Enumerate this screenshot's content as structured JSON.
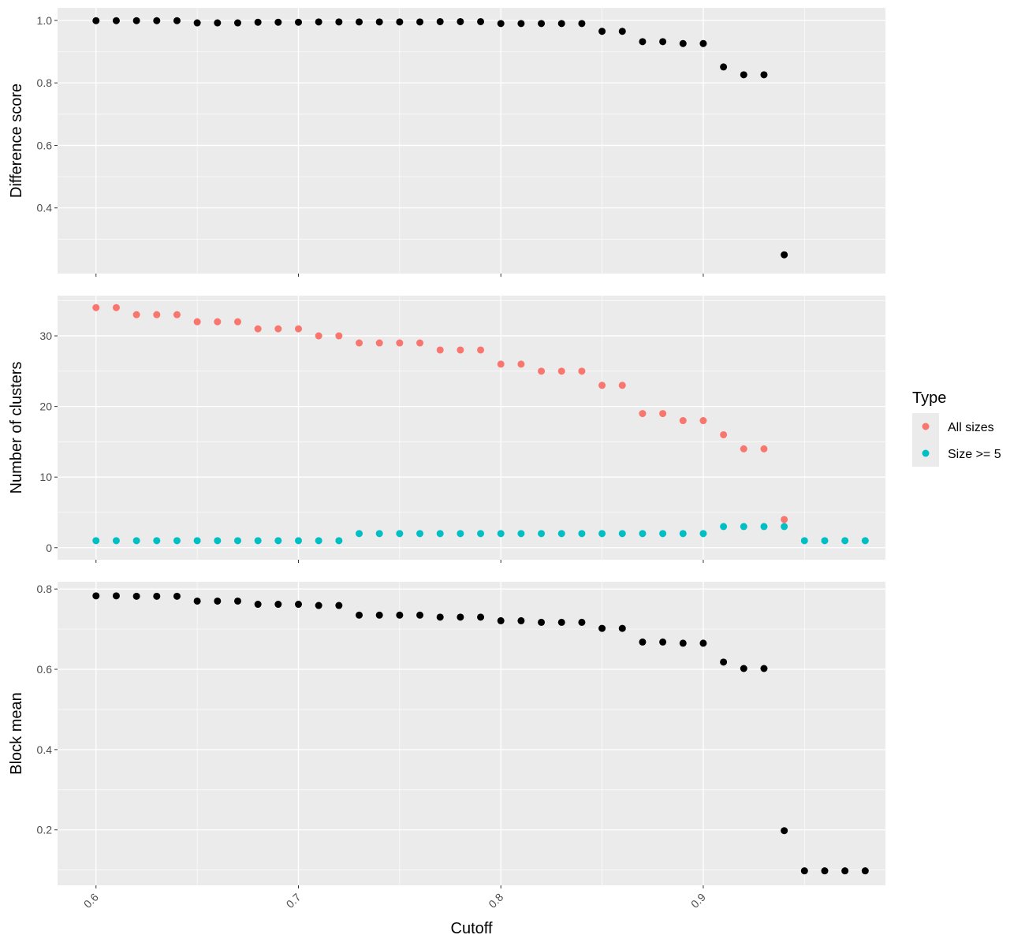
{
  "colors": {
    "panel_bg": "#ebebeb",
    "grid_major": "#ffffff",
    "point_default": "#000000",
    "all_sizes": "#f8766d",
    "size_ge_5": "#00bfc4",
    "tick": "#333333"
  },
  "chart_data": {
    "type": "scatter",
    "layout": "three vertically stacked panels sharing x axis",
    "xlabel": "Cutoff",
    "xlim": [
      0.581,
      0.99
    ],
    "x_ticks": [
      0.6,
      0.7,
      0.8,
      0.9
    ],
    "x_tick_labels": [
      "0.6",
      "0.7",
      "0.8",
      "0.9"
    ],
    "x_tick_rotation": "45 degrees",
    "grid": true,
    "panels": [
      {
        "ylabel": "Difference score",
        "ylim": [
          0.19,
          1.04
        ],
        "y_ticks": [
          0.4,
          0.6,
          0.8,
          1.0
        ],
        "y_tick_labels": [
          "0.4",
          "0.6",
          "0.8",
          "1.0"
        ],
        "series": [
          {
            "color_key": "point_default",
            "x": [
              0.6,
              0.61,
              0.62,
              0.63,
              0.64,
              0.65,
              0.66,
              0.67,
              0.68,
              0.69,
              0.7,
              0.71,
              0.72,
              0.73,
              0.74,
              0.75,
              0.76,
              0.77,
              0.78,
              0.79,
              0.8,
              0.81,
              0.82,
              0.83,
              0.84,
              0.85,
              0.86,
              0.87,
              0.88,
              0.89,
              0.9,
              0.91,
              0.92,
              0.93,
              0.94
            ],
            "y": [
              0.999,
              0.999,
              0.999,
              0.999,
              0.999,
              0.992,
              0.992,
              0.992,
              0.994,
              0.994,
              0.994,
              0.995,
              0.995,
              0.995,
              0.995,
              0.995,
              0.995,
              0.996,
              0.996,
              0.996,
              0.99,
              0.99,
              0.99,
              0.99,
              0.99,
              0.965,
              0.965,
              0.932,
              0.932,
              0.926,
              0.926,
              0.851,
              0.826,
              0.826,
              0.25
            ]
          }
        ]
      },
      {
        "ylabel": "Number of clusters",
        "ylim": [
          -1.7,
          35.7
        ],
        "y_ticks": [
          0,
          10,
          20,
          30
        ],
        "y_tick_labels": [
          "0",
          "10",
          "20",
          "30"
        ],
        "series": [
          {
            "name": "All sizes",
            "color_key": "all_sizes",
            "x": [
              0.6,
              0.61,
              0.62,
              0.63,
              0.64,
              0.65,
              0.66,
              0.67,
              0.68,
              0.69,
              0.7,
              0.71,
              0.72,
              0.73,
              0.74,
              0.75,
              0.76,
              0.77,
              0.78,
              0.79,
              0.8,
              0.81,
              0.82,
              0.83,
              0.84,
              0.85,
              0.86,
              0.87,
              0.88,
              0.89,
              0.9,
              0.91,
              0.92,
              0.93,
              0.94
            ],
            "y": [
              34,
              34,
              33,
              33,
              33,
              32,
              32,
              32,
              31,
              31,
              31,
              30,
              30,
              29,
              29,
              29,
              29,
              28,
              28,
              28,
              26,
              26,
              25,
              25,
              25,
              23,
              23,
              19,
              19,
              18,
              18,
              16,
              14,
              14,
              4
            ]
          },
          {
            "name": "Size >= 5",
            "color_key": "size_ge_5",
            "x": [
              0.6,
              0.61,
              0.62,
              0.63,
              0.64,
              0.65,
              0.66,
              0.67,
              0.68,
              0.69,
              0.7,
              0.71,
              0.72,
              0.73,
              0.74,
              0.75,
              0.76,
              0.77,
              0.78,
              0.79,
              0.8,
              0.81,
              0.82,
              0.83,
              0.84,
              0.85,
              0.86,
              0.87,
              0.88,
              0.89,
              0.9,
              0.91,
              0.92,
              0.93,
              0.94,
              0.95,
              0.96,
              0.97,
              0.98
            ],
            "y": [
              1,
              1,
              1,
              1,
              1,
              1,
              1,
              1,
              1,
              1,
              1,
              1,
              1,
              2,
              2,
              2,
              2,
              2,
              2,
              2,
              2,
              2,
              2,
              2,
              2,
              2,
              2,
              2,
              2,
              2,
              2,
              3,
              3,
              3,
              3,
              1,
              1,
              1,
              1
            ]
          }
        ]
      },
      {
        "ylabel": "Block mean",
        "ylim": [
          0.062,
          0.818
        ],
        "y_ticks": [
          0.2,
          0.4,
          0.6,
          0.8
        ],
        "y_tick_labels": [
          "0.2",
          "0.4",
          "0.6",
          "0.8"
        ],
        "series": [
          {
            "color_key": "point_default",
            "x": [
              0.6,
              0.61,
              0.62,
              0.63,
              0.64,
              0.65,
              0.66,
              0.67,
              0.68,
              0.69,
              0.7,
              0.71,
              0.72,
              0.73,
              0.74,
              0.75,
              0.76,
              0.77,
              0.78,
              0.79,
              0.8,
              0.81,
              0.82,
              0.83,
              0.84,
              0.85,
              0.86,
              0.87,
              0.88,
              0.89,
              0.9,
              0.91,
              0.92,
              0.93,
              0.94,
              0.95,
              0.96,
              0.97,
              0.98
            ],
            "y": [
              0.783,
              0.783,
              0.782,
              0.782,
              0.782,
              0.77,
              0.77,
              0.77,
              0.762,
              0.762,
              0.762,
              0.759,
              0.759,
              0.735,
              0.735,
              0.735,
              0.735,
              0.73,
              0.73,
              0.73,
              0.721,
              0.721,
              0.717,
              0.717,
              0.717,
              0.702,
              0.702,
              0.668,
              0.668,
              0.665,
              0.665,
              0.618,
              0.602,
              0.602,
              0.198,
              0.098,
              0.098,
              0.098,
              0.098
            ]
          }
        ]
      }
    ],
    "legend": {
      "title": "Type",
      "position": "right",
      "entries": [
        {
          "label": "All sizes",
          "color_key": "all_sizes"
        },
        {
          "label": "Size >= 5",
          "color_key": "size_ge_5"
        }
      ]
    }
  }
}
